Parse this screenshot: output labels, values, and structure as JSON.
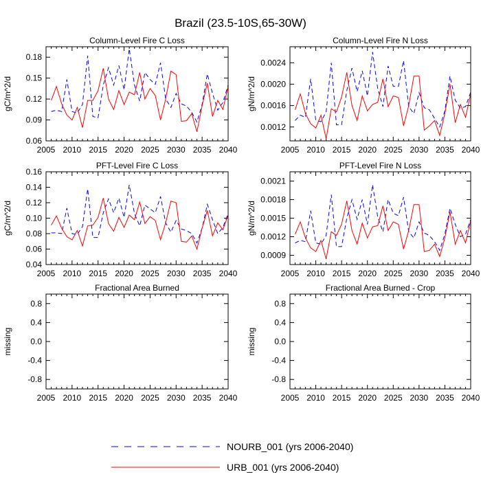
{
  "figure": {
    "title": "Brazil (23.5-10S,65-30W)"
  },
  "legend": {
    "items": [
      {
        "label": "NOURB_001 (yrs 2006-2040)",
        "color": "#0000ff",
        "dash": "dashed"
      },
      {
        "label": "URB_001 (yrs 2006-2040)",
        "color": "#ff0000",
        "dash": "solid"
      }
    ]
  },
  "chart_data": [
    {
      "type": "line",
      "title": "Column-Level Fire C Loss",
      "xlabel": "",
      "ylabel": "gC/m^2/d",
      "xlim": [
        2005,
        2040
      ],
      "ylim": [
        0.06,
        0.195
      ],
      "xticks": [
        2005,
        2010,
        2015,
        2020,
        2025,
        2030,
        2035,
        2040
      ],
      "yticks": [
        0.06,
        0.09,
        0.12,
        0.15,
        0.18
      ],
      "ytick_labels": [
        "0.06",
        "0.09",
        "0.12",
        "0.15",
        "0.18"
      ],
      "x": [
        2006,
        2007,
        2008,
        2009,
        2010,
        2011,
        2012,
        2013,
        2014,
        2015,
        2016,
        2017,
        2018,
        2019,
        2020,
        2021,
        2022,
        2023,
        2024,
        2025,
        2026,
        2027,
        2028,
        2029,
        2030,
        2031,
        2032,
        2033,
        2034,
        2035,
        2036,
        2037,
        2038,
        2039,
        2040
      ],
      "series": [
        {
          "name": "NOURB_001",
          "values": [
            0.102,
            0.104,
            0.102,
            0.148,
            0.102,
            0.1,
            0.112,
            0.182,
            0.095,
            0.093,
            0.14,
            0.165,
            0.14,
            0.168,
            0.133,
            0.192,
            0.14,
            0.117,
            0.158,
            0.148,
            0.141,
            0.172,
            0.12,
            0.108,
            0.128,
            0.113,
            0.11,
            0.101,
            0.087,
            0.112,
            0.156,
            0.128,
            0.104,
            0.115,
            0.14
          ]
        },
        {
          "name": "URB_001",
          "values": [
            0.118,
            0.138,
            0.113,
            0.097,
            0.09,
            0.108,
            0.079,
            0.118,
            0.118,
            0.132,
            0.164,
            0.12,
            0.105,
            0.132,
            0.112,
            0.13,
            0.126,
            0.158,
            0.12,
            0.135,
            0.125,
            0.09,
            0.12,
            0.16,
            0.155,
            0.088,
            0.089,
            0.099,
            0.073,
            0.11,
            0.143,
            0.095,
            0.118,
            0.105,
            0.138
          ]
        }
      ]
    },
    {
      "type": "line",
      "title": "Column-Level Fire N Loss",
      "xlabel": "",
      "ylabel": "gN/m^2/d",
      "xlim": [
        2005,
        2040
      ],
      "ylim": [
        0.00094,
        0.0027
      ],
      "xticks": [
        2005,
        2010,
        2015,
        2020,
        2025,
        2030,
        2035,
        2040
      ],
      "yticks": [
        0.0012,
        0.0016,
        0.002,
        0.0024
      ],
      "ytick_labels": [
        "0.0012",
        "0.0016",
        "0.0020",
        "0.0024"
      ],
      "x": [
        2006,
        2007,
        2008,
        2009,
        2010,
        2011,
        2012,
        2013,
        2014,
        2015,
        2016,
        2017,
        2018,
        2019,
        2020,
        2021,
        2022,
        2023,
        2024,
        2025,
        2026,
        2027,
        2028,
        2029,
        2030,
        2031,
        2032,
        2033,
        2034,
        2035,
        2036,
        2037,
        2038,
        2039,
        2040
      ],
      "series": [
        {
          "name": "NOURB_001",
          "values": [
            0.00132,
            0.00142,
            0.00138,
            0.0021,
            0.00132,
            0.0013,
            0.00148,
            0.0024,
            0.00124,
            0.00124,
            0.00188,
            0.0023,
            0.00186,
            0.00225,
            0.00178,
            0.0026,
            0.00192,
            0.00158,
            0.00234,
            0.00196,
            0.00196,
            0.00244,
            0.00158,
            0.00145,
            0.00184,
            0.00156,
            0.00152,
            0.00136,
            0.0012,
            0.0015,
            0.00215,
            0.0017,
            0.00155,
            0.00158,
            0.00185
          ]
        },
        {
          "name": "URB_001",
          "values": [
            0.00152,
            0.00182,
            0.00145,
            0.00126,
            0.00118,
            0.00142,
            0.00098,
            0.00154,
            0.00148,
            0.00176,
            0.00222,
            0.0016,
            0.00132,
            0.00178,
            0.0015,
            0.00162,
            0.00166,
            0.0021,
            0.00158,
            0.00178,
            0.00175,
            0.00122,
            0.0016,
            0.00215,
            0.00215,
            0.00114,
            0.00122,
            0.00132,
            0.00104,
            0.00145,
            0.002,
            0.00128,
            0.00162,
            0.00138,
            0.00182
          ]
        }
      ]
    },
    {
      "type": "line",
      "title": "PFT-Level Fire C Loss",
      "xlabel": "",
      "ylabel": "gC/m^2/d",
      "xlim": [
        2005,
        2040
      ],
      "ylim": [
        0.04,
        0.16
      ],
      "xticks": [
        2005,
        2010,
        2015,
        2020,
        2025,
        2030,
        2035,
        2040
      ],
      "yticks": [
        0.04,
        0.06,
        0.08,
        0.1,
        0.12,
        0.14,
        0.16
      ],
      "ytick_labels": [
        "0.04",
        "0.06",
        "0.08",
        "0.10",
        "0.12",
        "0.14",
        "0.16"
      ],
      "x": [
        2006,
        2007,
        2008,
        2009,
        2010,
        2011,
        2012,
        2013,
        2014,
        2015,
        2016,
        2017,
        2018,
        2019,
        2020,
        2021,
        2022,
        2023,
        2024,
        2025,
        2026,
        2027,
        2028,
        2029,
        2030,
        2031,
        2032,
        2033,
        2034,
        2035,
        2036,
        2037,
        2038,
        2039,
        2040
      ],
      "series": [
        {
          "name": "NOURB_001",
          "values": [
            0.081,
            0.081,
            0.08,
            0.113,
            0.08,
            0.079,
            0.089,
            0.138,
            0.075,
            0.075,
            0.107,
            0.125,
            0.107,
            0.126,
            0.101,
            0.143,
            0.106,
            0.09,
            0.117,
            0.112,
            0.107,
            0.128,
            0.094,
            0.082,
            0.097,
            0.086,
            0.084,
            0.08,
            0.068,
            0.087,
            0.118,
            0.098,
            0.08,
            0.088,
            0.106
          ]
        },
        {
          "name": "URB_001",
          "values": [
            0.091,
            0.103,
            0.087,
            0.076,
            0.072,
            0.084,
            0.064,
            0.09,
            0.091,
            0.101,
            0.126,
            0.093,
            0.083,
            0.101,
            0.088,
            0.104,
            0.098,
            0.121,
            0.093,
            0.102,
            0.097,
            0.072,
            0.094,
            0.122,
            0.12,
            0.07,
            0.069,
            0.077,
            0.06,
            0.087,
            0.11,
            0.077,
            0.094,
            0.085,
            0.104
          ]
        }
      ]
    },
    {
      "type": "line",
      "title": "PFT-Level Fire N Loss",
      "xlabel": "",
      "ylabel": "gN/m^2/d",
      "xlim": [
        2005,
        2040
      ],
      "ylim": [
        0.00075,
        0.00225
      ],
      "xticks": [
        2005,
        2010,
        2015,
        2020,
        2025,
        2030,
        2035,
        2040
      ],
      "yticks": [
        0.0009,
        0.0012,
        0.0015,
        0.0018,
        0.0021
      ],
      "ytick_labels": [
        "0.0009",
        "0.0012",
        "0.0015",
        "0.0018",
        "0.0021"
      ],
      "x": [
        2006,
        2007,
        2008,
        2009,
        2010,
        2011,
        2012,
        2013,
        2014,
        2015,
        2016,
        2017,
        2018,
        2019,
        2020,
        2021,
        2022,
        2023,
        2024,
        2025,
        2026,
        2027,
        2028,
        2029,
        2030,
        2031,
        2032,
        2033,
        2034,
        2035,
        2036,
        2037,
        2038,
        2039,
        2040
      ],
      "series": [
        {
          "name": "NOURB_001",
          "values": [
            0.0011,
            0.00114,
            0.00112,
            0.00162,
            0.0011,
            0.00108,
            0.00122,
            0.00188,
            0.00104,
            0.00104,
            0.0015,
            0.0018,
            0.00148,
            0.0018,
            0.0014,
            0.00204,
            0.00152,
            0.00128,
            0.0018,
            0.00158,
            0.00154,
            0.00184,
            0.00128,
            0.00118,
            0.00144,
            0.00126,
            0.00122,
            0.00112,
            0.00098,
            0.00124,
            0.00166,
            0.0014,
            0.0012,
            0.00124,
            0.00148
          ]
        },
        {
          "name": "URB_001",
          "values": [
            0.00124,
            0.00144,
            0.00118,
            0.00102,
            0.00096,
            0.00114,
            0.00084,
            0.00128,
            0.00122,
            0.0014,
            0.00178,
            0.0013,
            0.00108,
            0.00142,
            0.00118,
            0.00136,
            0.00138,
            0.0017,
            0.0013,
            0.00144,
            0.0014,
            0.001,
            0.0013,
            0.00172,
            0.00172,
            0.00096,
            0.00098,
            0.00108,
            0.00088,
            0.00118,
            0.0016,
            0.00108,
            0.0013,
            0.0011,
            0.00146
          ]
        }
      ]
    },
    {
      "type": "line",
      "title": "Fractional Area Burned",
      "xlabel": "",
      "ylabel": "missing",
      "xlim": [
        2005,
        2040
      ],
      "ylim": [
        -1.0,
        1.0
      ],
      "xticks": [
        2005,
        2010,
        2015,
        2020,
        2025,
        2030,
        2035,
        2040
      ],
      "yticks": [
        -0.8,
        -0.4,
        0.0,
        0.4,
        0.8
      ],
      "ytick_labels": [
        "-0.8",
        "-0.4",
        "0.0",
        "0.4",
        "0.8"
      ],
      "x": [],
      "series": []
    },
    {
      "type": "line",
      "title": "Fractional Area Burned - Crop",
      "xlabel": "",
      "ylabel": "missing",
      "xlim": [
        2005,
        2040
      ],
      "ylim": [
        -1.0,
        1.0
      ],
      "xticks": [
        2005,
        2010,
        2015,
        2020,
        2025,
        2030,
        2035,
        2040
      ],
      "yticks": [
        -0.8,
        -0.4,
        0.0,
        0.4,
        0.8
      ],
      "ytick_labels": [
        "-0.8",
        "-0.4",
        "0.0",
        "0.4",
        "0.8"
      ],
      "x": [],
      "series": []
    }
  ]
}
